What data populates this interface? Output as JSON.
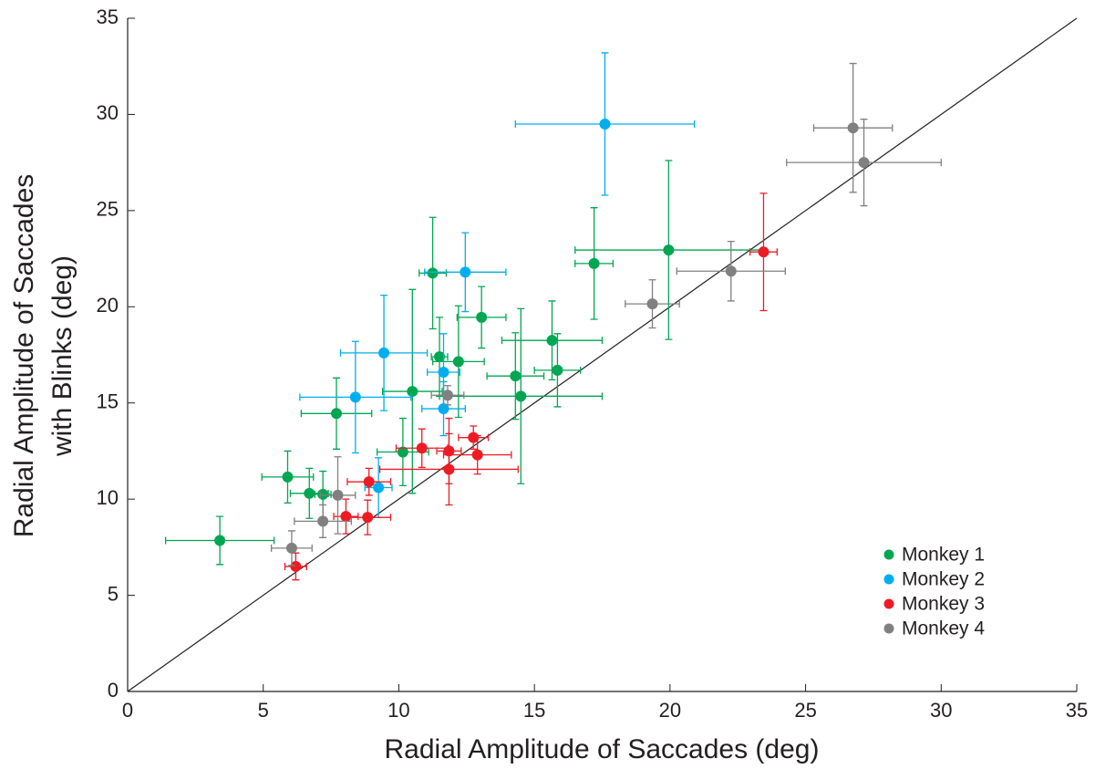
{
  "chart_data": {
    "type": "scatter",
    "xlabel": "Radial Amplitude of Saccades (deg)",
    "ylabel": [
      "Radial Amplitude of Saccades",
      "with Blinks (deg)"
    ],
    "xlim": [
      0,
      35
    ],
    "ylim": [
      0,
      35
    ],
    "xticks": [
      0,
      5,
      10,
      15,
      20,
      25,
      30,
      35
    ],
    "yticks": [
      0,
      5,
      10,
      15,
      20,
      25,
      30,
      35
    ],
    "legend": "lower right",
    "series": [
      {
        "name": "Monkey 1",
        "color": "#00a651",
        "x": [
          3.4,
          5.9,
          6.7,
          7.2,
          7.7,
          10.15,
          10.5,
          11.25,
          11.5,
          12.2,
          13.05,
          14.3,
          14.5,
          15.65,
          15.85,
          17.2,
          19.95
        ],
        "y": [
          7.85,
          11.15,
          10.3,
          10.25,
          14.45,
          12.45,
          15.6,
          21.75,
          17.4,
          17.15,
          19.45,
          16.4,
          15.35,
          18.25,
          16.7,
          22.25,
          22.95
        ],
        "xerr": [
          2,
          0.95,
          0.7,
          0.3,
          1.3,
          0.95,
          1.1,
          0.5,
          0.3,
          0.95,
          0.9,
          1.05,
          3,
          1.85,
          0.85,
          0.7,
          3.45
        ],
        "yerr": [
          1.25,
          1.35,
          1.3,
          1.2,
          1.85,
          1.75,
          5.3,
          2.9,
          2.05,
          2.9,
          1.6,
          2.25,
          4.55,
          2.05,
          1.9,
          2.9,
          4.65
        ]
      },
      {
        "name": "Monkey 2",
        "color": "#00aeef",
        "x": [
          9.25,
          8.4,
          9.45,
          11.65,
          11.65,
          12.45,
          17.6
        ],
        "y": [
          10.6,
          15.3,
          17.6,
          16.6,
          14.7,
          21.8,
          29.5
        ],
        "xerr": [
          0.5,
          2.05,
          1.6,
          0.6,
          0.8,
          1.5,
          3.3
        ],
        "yerr": [
          1.55,
          2.9,
          3,
          2,
          1.4,
          2.05,
          3.7
        ]
      },
      {
        "name": "Monkey 3",
        "color": "#ed1c24",
        "x": [
          6.2,
          8.05,
          8.85,
          8.9,
          10.85,
          11.85,
          11.85,
          12.75,
          12.9,
          23.45
        ],
        "y": [
          6.5,
          9.1,
          9.05,
          10.9,
          12.65,
          11.55,
          12.5,
          13.2,
          12.3,
          22.85
        ],
        "xerr": [
          0.4,
          0.45,
          0.85,
          0.8,
          0.95,
          2.55,
          0.45,
          0.55,
          1.25,
          0.5
        ],
        "yerr": [
          0.7,
          0.9,
          0.9,
          0.7,
          1,
          1.85,
          1.7,
          0.6,
          1,
          3.05
        ]
      },
      {
        "name": "Monkey 4",
        "color": "#808080",
        "x": [
          6.05,
          7.2,
          7.75,
          11.8,
          19.35,
          22.25,
          26.75,
          27.15
        ],
        "y": [
          7.45,
          8.85,
          10.2,
          15.4,
          20.15,
          21.85,
          29.3,
          27.5
        ],
        "xerr": [
          0.75,
          1.05,
          0.65,
          0.6,
          1,
          2,
          1.45,
          2.85
        ],
        "yerr": [
          0.9,
          0.85,
          2,
          0.5,
          1.25,
          1.55,
          3.35,
          2.25
        ]
      }
    ]
  }
}
